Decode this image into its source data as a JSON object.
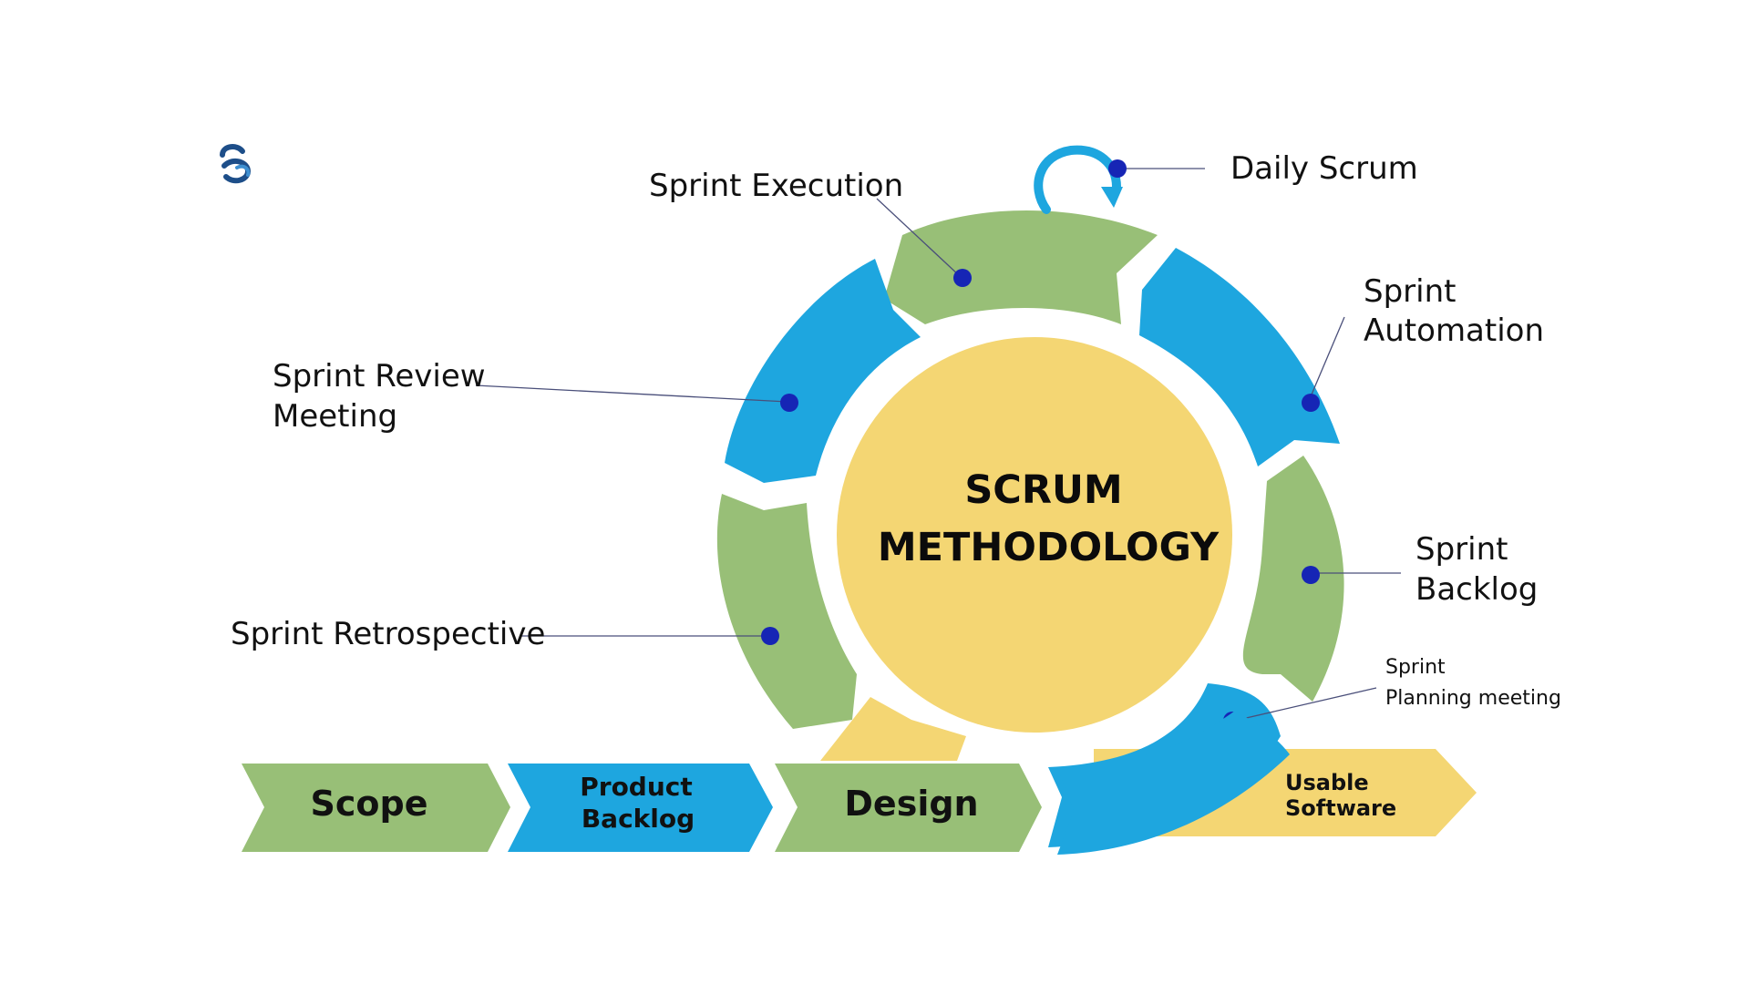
{
  "title": {
    "line1": "SCRUM",
    "line2": "METHODOLOGY"
  },
  "labels": {
    "daily_scrum": "Daily Scrum",
    "sprint_execution": "Sprint Execution",
    "sprint_automation": {
      "line1": "Sprint",
      "line2": "Automation"
    },
    "sprint_review": {
      "line1": "Sprint Review",
      "line2": "Meeting"
    },
    "sprint_backlog": {
      "line1": "Sprint",
      "line2": "Backlog"
    },
    "sprint_retrospective": "Sprint Retrospective",
    "sprint_planning": {
      "line1": "Sprint",
      "line2": "Planning meeting"
    }
  },
  "stages": {
    "scope": "Scope",
    "product_backlog": {
      "line1": "Product",
      "line2": "Backlog"
    },
    "design": "Design",
    "usable_software": {
      "line1": "Usable",
      "line2": "Software"
    }
  },
  "colors": {
    "green": "#98BF77",
    "blue": "#1EA6DF",
    "yellow": "#F4D673",
    "dot": "#1625B5",
    "logo": "#1D4E89"
  },
  "icons": {
    "logo": "company-logo-icon",
    "daily_loop": "circular-arrow-icon"
  }
}
